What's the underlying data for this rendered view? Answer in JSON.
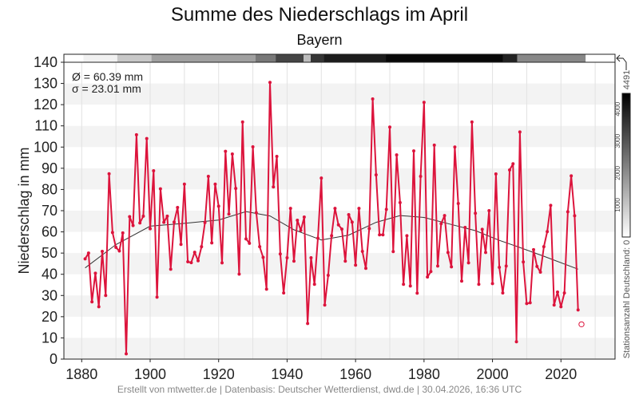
{
  "chart_data": {
    "type": "line",
    "title": "Summe des Niederschlags im April",
    "subtitle": "Bayern",
    "xlabel": "",
    "ylabel": "Niederschlag in mm",
    "xlim": [
      1874.8,
      2035.8
    ],
    "ylim": [
      0,
      140
    ],
    "xticks": [
      1880,
      1900,
      1920,
      1940,
      1960,
      1980,
      2000,
      2020
    ],
    "yticks": [
      0,
      10,
      20,
      30,
      40,
      50,
      60,
      70,
      80,
      90,
      100,
      110,
      120,
      130,
      140
    ],
    "grid": true,
    "stats": {
      "mean": "Ø = 60.39 mm",
      "std": "σ = 23.01 mm"
    },
    "series": [
      {
        "name": "Niederschlag",
        "color": "#dc143c",
        "x_start": 1881,
        "values": [
          47.3,
          50,
          27,
          40.5,
          24.7,
          50.8,
          30,
          87.4,
          59.7,
          52.7,
          51,
          59.5,
          2.5,
          67.2,
          63,
          105.8,
          64.2,
          67.4,
          104,
          61.5,
          88.8,
          29.2,
          80.3,
          64.5,
          67.4,
          42.4,
          64.6,
          71.5,
          54.1,
          82.5,
          45.9,
          45.5,
          50.4,
          46.4,
          53,
          64.4,
          86.2,
          54.8,
          82.5,
          72.1,
          45.4,
          98,
          68.4,
          96.7,
          80.5,
          40.1,
          111.8,
          56.7,
          54.6,
          100.1,
          69,
          53,
          48,
          33,
          130.5,
          81.2,
          95.6,
          49.6,
          31.2,
          47.8,
          71.1,
          46.2,
          65.5,
          60.7,
          67,
          16.8,
          47.8,
          35.3,
          57,
          85.4,
          25.5,
          39.5,
          58.2,
          71.1,
          63.3,
          61.3,
          46.2,
          68.1,
          64.6,
          44.3,
          71.1,
          50.8,
          42.8,
          61.6,
          122.7,
          86.9,
          58.6,
          58.6,
          70.6,
          109.4,
          50.7,
          96.3,
          73.8,
          35.3,
          58.2,
          34.5,
          98.2,
          31.1,
          86.2,
          121.1,
          38.7,
          41.3,
          100.9,
          43.9,
          63.9,
          67.7,
          50.3,
          43.5,
          100,
          73.4,
          36.8,
          62.1,
          45.4,
          111.8,
          68.8,
          35.3,
          61.2,
          50.3,
          70,
          35.6,
          87.3,
          43.3,
          31.2,
          43.9,
          89.2,
          92.1,
          8.2,
          107.1,
          45.8,
          26.2,
          26.6,
          51.6,
          43.7,
          41,
          53,
          60.1,
          72.5,
          25.5,
          31.6,
          24.7,
          31.2,
          69.5,
          86.4,
          67.6,
          23.2
        ]
      },
      {
        "name": "Trend",
        "color": "#333333",
        "x": [
          1881,
          1890,
          1900,
          1910,
          1920,
          1928,
          1935,
          1942,
          1950,
          1958,
          1966,
          1973,
          1980,
          1988,
          1995,
          2002,
          2007,
          2015,
          2025
        ],
        "values": [
          43,
          54,
          62.7,
          64,
          65.6,
          69.6,
          67.5,
          61,
          56.2,
          58.5,
          64.5,
          67.7,
          66.8,
          63.5,
          60.6,
          56,
          53.2,
          48.5,
          42.4
        ]
      }
    ],
    "current_partial": {
      "year": 2026,
      "value": 16.4
    },
    "station_count": {
      "label": "Stationsanzahl Deutschland: 0",
      "max_label": "4491",
      "max": 4491,
      "legend_ticks": [
        "1000",
        "2000",
        "3000",
        "4000"
      ],
      "segments": [
        {
          "from": 1874.8,
          "to": 1880.5,
          "count": 0
        },
        {
          "from": 1880.5,
          "to": 1890.4,
          "count": 250
        },
        {
          "from": 1890.4,
          "to": 1900.4,
          "count": 970
        },
        {
          "from": 1900.4,
          "to": 1930.8,
          "count": 1670
        },
        {
          "from": 1930.8,
          "to": 1936.7,
          "count": 2380
        },
        {
          "from": 1936.7,
          "to": 1944.8,
          "count": 3280
        },
        {
          "from": 1944.8,
          "to": 1946.9,
          "count": 1180
        },
        {
          "from": 1946.9,
          "to": 1950.8,
          "count": 3560
        },
        {
          "from": 1950.8,
          "to": 1968.9,
          "count": 3990
        },
        {
          "from": 1968.9,
          "to": 2003.0,
          "count": 4350
        },
        {
          "from": 2003.0,
          "to": 2007.2,
          "count": 3870
        },
        {
          "from": 2007.2,
          "to": 2027.2,
          "count": 2100
        },
        {
          "from": 2027.2,
          "to": 2035.8,
          "count": 0
        }
      ]
    }
  },
  "footer": "Erstellt von mtwetter.de | Datenbasis: Deutscher Wetterdienst, dwd.de | 30.04.2026, 16:36 UTC"
}
